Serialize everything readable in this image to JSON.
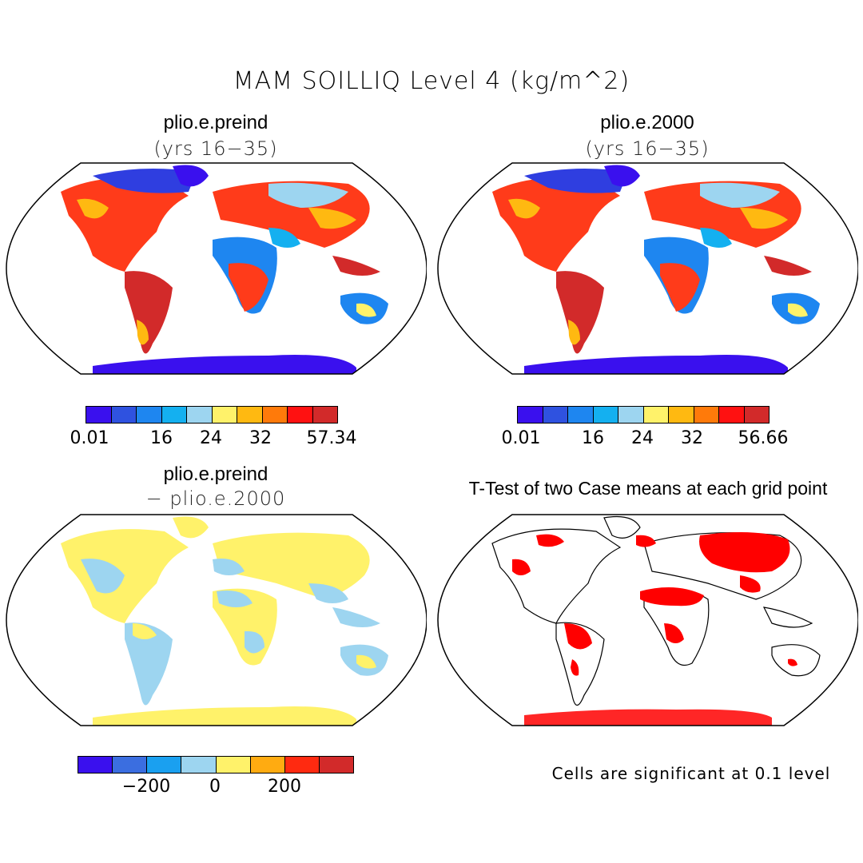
{
  "title": "MAM SOILLIQ Level 4 (kg/m^2)",
  "panels": [
    {
      "title": "plio.e.preind",
      "subtitle": "(yrs 16−35)",
      "colorbar": {
        "colors": [
          "#3a10ee",
          "#2f52e0",
          "#1e86f0",
          "#14b0f0",
          "#9dd5f0",
          "#fff26a",
          "#ffb911",
          "#ff7a0a",
          "#ff1111",
          "#d22a2a"
        ],
        "labels": [
          "0.01",
          "16",
          "24",
          "32",
          "57.34"
        ]
      }
    },
    {
      "title": "plio.e.2000",
      "subtitle": "(yrs 16−35)",
      "colorbar": {
        "colors": [
          "#3a10ee",
          "#2f52e0",
          "#1e86f0",
          "#14b0f0",
          "#9dd5f0",
          "#fff26a",
          "#ffb911",
          "#ff7a0a",
          "#ff1111",
          "#d22a2a"
        ],
        "labels": [
          "0.01",
          "16",
          "24",
          "32",
          "56.66"
        ]
      }
    },
    {
      "title": "plio.e.preind",
      "subtitle": "− plio.e.2000",
      "colorbar": {
        "colors": [
          "#3a10ee",
          "#3b6ee0",
          "#1aa0f0",
          "#9dd5f0",
          "#fff26a",
          "#ffab11",
          "#ff2a10",
          "#d22a2a"
        ],
        "labels": [
          "−200",
          "0",
          "200"
        ]
      }
    },
    {
      "title": "T-Test of two Case means at each grid point",
      "note": "Cells are significant at 0.1 level"
    }
  ]
}
